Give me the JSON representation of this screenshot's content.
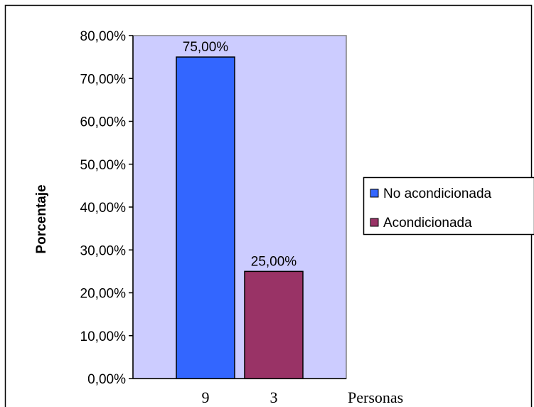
{
  "chart_data": {
    "type": "bar",
    "categories": [
      "9",
      "3"
    ],
    "series": [
      {
        "name": "No acondicionada",
        "values": [
          75,
          null
        ],
        "color": "#3366FF"
      },
      {
        "name": "Acondicionada",
        "values": [
          null,
          25
        ],
        "color": "#993366"
      }
    ],
    "data_labels": [
      "75,00%",
      "25,00%"
    ],
    "ylabel": "Porcentaje",
    "xlabel": "Personas",
    "ylim": [
      0,
      80
    ],
    "yticks": [
      {
        "value": 0,
        "label": "0,00%"
      },
      {
        "value": 10,
        "label": "10,00%"
      },
      {
        "value": 20,
        "label": "20,00%"
      },
      {
        "value": 30,
        "label": "30,00%"
      },
      {
        "value": 40,
        "label": "40,00%"
      },
      {
        "value": 50,
        "label": "50,00%"
      },
      {
        "value": 60,
        "label": "60,00%"
      },
      {
        "value": 70,
        "label": "70,00%"
      },
      {
        "value": 80,
        "label": "80,00%"
      }
    ],
    "plot_background": "#CCCCFF",
    "grid": false,
    "legend_position": "right"
  }
}
